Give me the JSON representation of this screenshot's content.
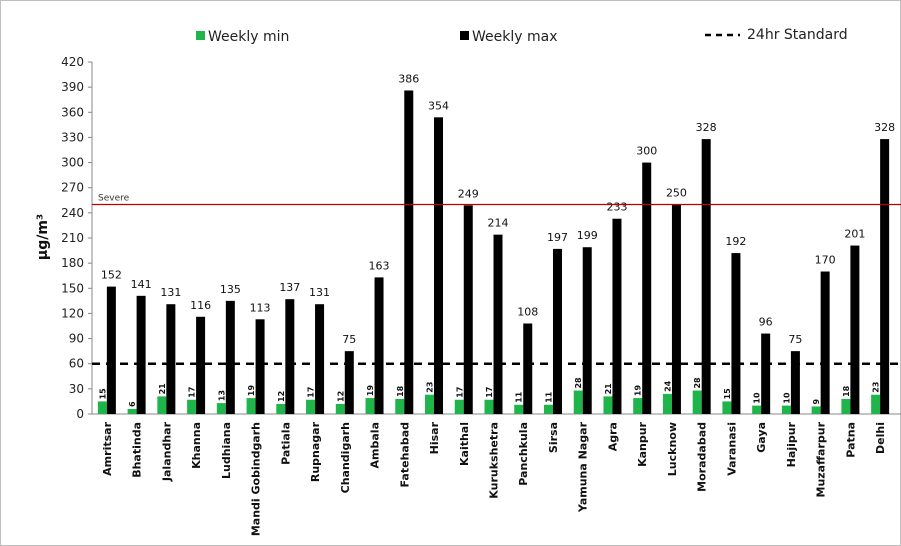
{
  "chart_data": {
    "type": "bar",
    "ylabel": "μg/m³",
    "ylim": [
      0,
      420
    ],
    "yticks": [
      0,
      30,
      60,
      90,
      120,
      150,
      180,
      210,
      240,
      270,
      300,
      330,
      360,
      390,
      420
    ],
    "categories": [
      "Amritsar",
      "Bhatinda",
      "Jalandhar",
      "Khanna",
      "Ludhiana",
      "Mandi Gobindgarh",
      "Patiala",
      "Rupnagar",
      "Chandigarh",
      "Ambala",
      "Fatehabad",
      "Hisar",
      "Kaithal",
      "Kurukshetra",
      "Panchkula",
      "Sirsa",
      "Yamuna Nagar",
      "Agra",
      "Kanpur",
      "Lucknow",
      "Moradabad",
      "Varanasi",
      "Gaya",
      "Hajipur",
      "Muzaffarpur",
      "Patna",
      "Delhi"
    ],
    "series": [
      {
        "name": "Weekly min",
        "color": "#1fb54a",
        "values": [
          15,
          6,
          21,
          17,
          13,
          19,
          12,
          17,
          12,
          19,
          18,
          23,
          17,
          17,
          11,
          11,
          28,
          21,
          19,
          24,
          28,
          15,
          10,
          10,
          9,
          18,
          23
        ]
      },
      {
        "name": "Weekly max",
        "color": "#000000",
        "values": [
          152,
          141,
          131,
          116,
          135,
          113,
          137,
          131,
          75,
          163,
          386,
          354,
          249,
          214,
          108,
          197,
          199,
          233,
          300,
          250,
          328,
          192,
          96,
          75,
          170,
          201,
          328
        ]
      }
    ],
    "reference_lines": [
      {
        "name": "24hr Standard",
        "value": 60,
        "style": "dashed",
        "color": "#000000"
      },
      {
        "name": "Severe",
        "value": 250,
        "style": "solid",
        "color": "#c00000"
      }
    ],
    "legend": {
      "placement": "top",
      "entries": [
        "Weekly min",
        "Weekly max",
        "24hr Standard"
      ]
    },
    "grid": false
  }
}
